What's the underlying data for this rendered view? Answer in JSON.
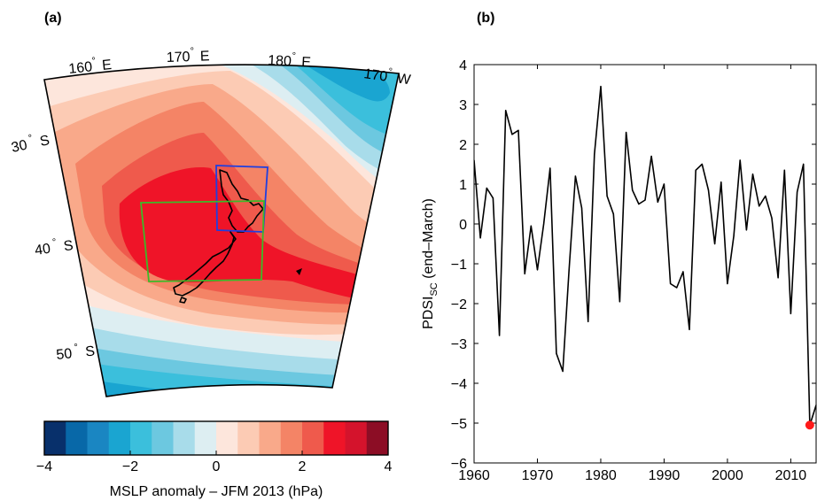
{
  "panel_a": {
    "label": "(a)",
    "lon_labels": [
      {
        "value": "160",
        "deg": "°",
        "hemi": "E"
      },
      {
        "value": "170",
        "deg": "°",
        "hemi": "E"
      },
      {
        "value": "180",
        "deg": "°",
        "hemi": "E"
      },
      {
        "value": "170",
        "deg": "°",
        "hemi": "W"
      }
    ],
    "lat_labels": [
      {
        "value": "30",
        "deg": "°",
        "hemi": "S"
      },
      {
        "value": "40",
        "deg": "°",
        "hemi": "S"
      },
      {
        "value": "50",
        "deg": "°",
        "hemi": "S"
      }
    ],
    "colorbar": {
      "title": "MSLP anomaly – JFM 2013 (hPa)",
      "ticks": [
        "−4",
        "−2",
        "0",
        "2",
        "4"
      ],
      "colors": [
        "#08306b",
        "#0868a8",
        "#1a86c2",
        "#1aa5d1",
        "#3bbfdc",
        "#6cc8e0",
        "#a8dcea",
        "#ddeef2",
        "#fde6dc",
        "#fccbb4",
        "#f9a98a",
        "#f48466",
        "#ef5a4c",
        "#ef1428",
        "#d4132c",
        "#8c0d25"
      ]
    },
    "boxes": {
      "blue": "#1f3fe0",
      "green": "#3cba28"
    }
  },
  "panel_b": {
    "label": "(b)",
    "ylabel_main": "PDSI",
    "ylabel_sub": "SC",
    "ylabel_tail": " (end–March)",
    "ytick_labels": [
      "4",
      "3",
      "2",
      "1",
      "0",
      "−1",
      "−2",
      "−3",
      "−4",
      "−5",
      "−6"
    ],
    "xtick_labels": [
      "1960",
      "1970",
      "1980",
      "1990",
      "2000",
      "2010"
    ]
  },
  "chart_data": {
    "type": "line",
    "xlabel": "",
    "ylabel": "PDSI_SC (end–March)",
    "xlim": [
      1960,
      2014
    ],
    "ylim": [
      -6,
      4
    ],
    "highlight": {
      "x": 2013,
      "y": -5.05,
      "color": "#ff1a1a"
    },
    "x": [
      1960,
      1961,
      1962,
      1963,
      1964,
      1965,
      1966,
      1967,
      1968,
      1969,
      1970,
      1971,
      1972,
      1973,
      1974,
      1975,
      1976,
      1977,
      1978,
      1979,
      1980,
      1981,
      1982,
      1983,
      1984,
      1985,
      1986,
      1987,
      1988,
      1989,
      1990,
      1991,
      1992,
      1993,
      1994,
      1995,
      1996,
      1997,
      1998,
      1999,
      2000,
      2001,
      2002,
      2003,
      2004,
      2005,
      2006,
      2007,
      2008,
      2009,
      2010,
      2011,
      2012,
      2013,
      2014
    ],
    "series": [
      {
        "values": [
          1.6,
          -0.35,
          0.9,
          0.65,
          -2.8,
          2.85,
          2.25,
          2.35,
          -1.25,
          -0.05,
          -1.15,
          0.0,
          1.4,
          -3.25,
          -3.7,
          -1.15,
          1.2,
          0.4,
          -2.45,
          1.75,
          3.45,
          0.7,
          0.25,
          -1.95,
          2.3,
          0.85,
          0.5,
          0.6,
          1.7,
          0.55,
          1.0,
          -1.5,
          -1.6,
          -1.2,
          -2.65,
          1.35,
          1.5,
          0.85,
          -0.5,
          1.05,
          -1.5,
          -0.3,
          1.6,
          -0.15,
          1.25,
          0.45,
          0.7,
          0.15,
          -1.35,
          1.35,
          -2.25,
          0.8,
          1.5,
          -5.05,
          -4.55
        ]
      }
    ]
  }
}
